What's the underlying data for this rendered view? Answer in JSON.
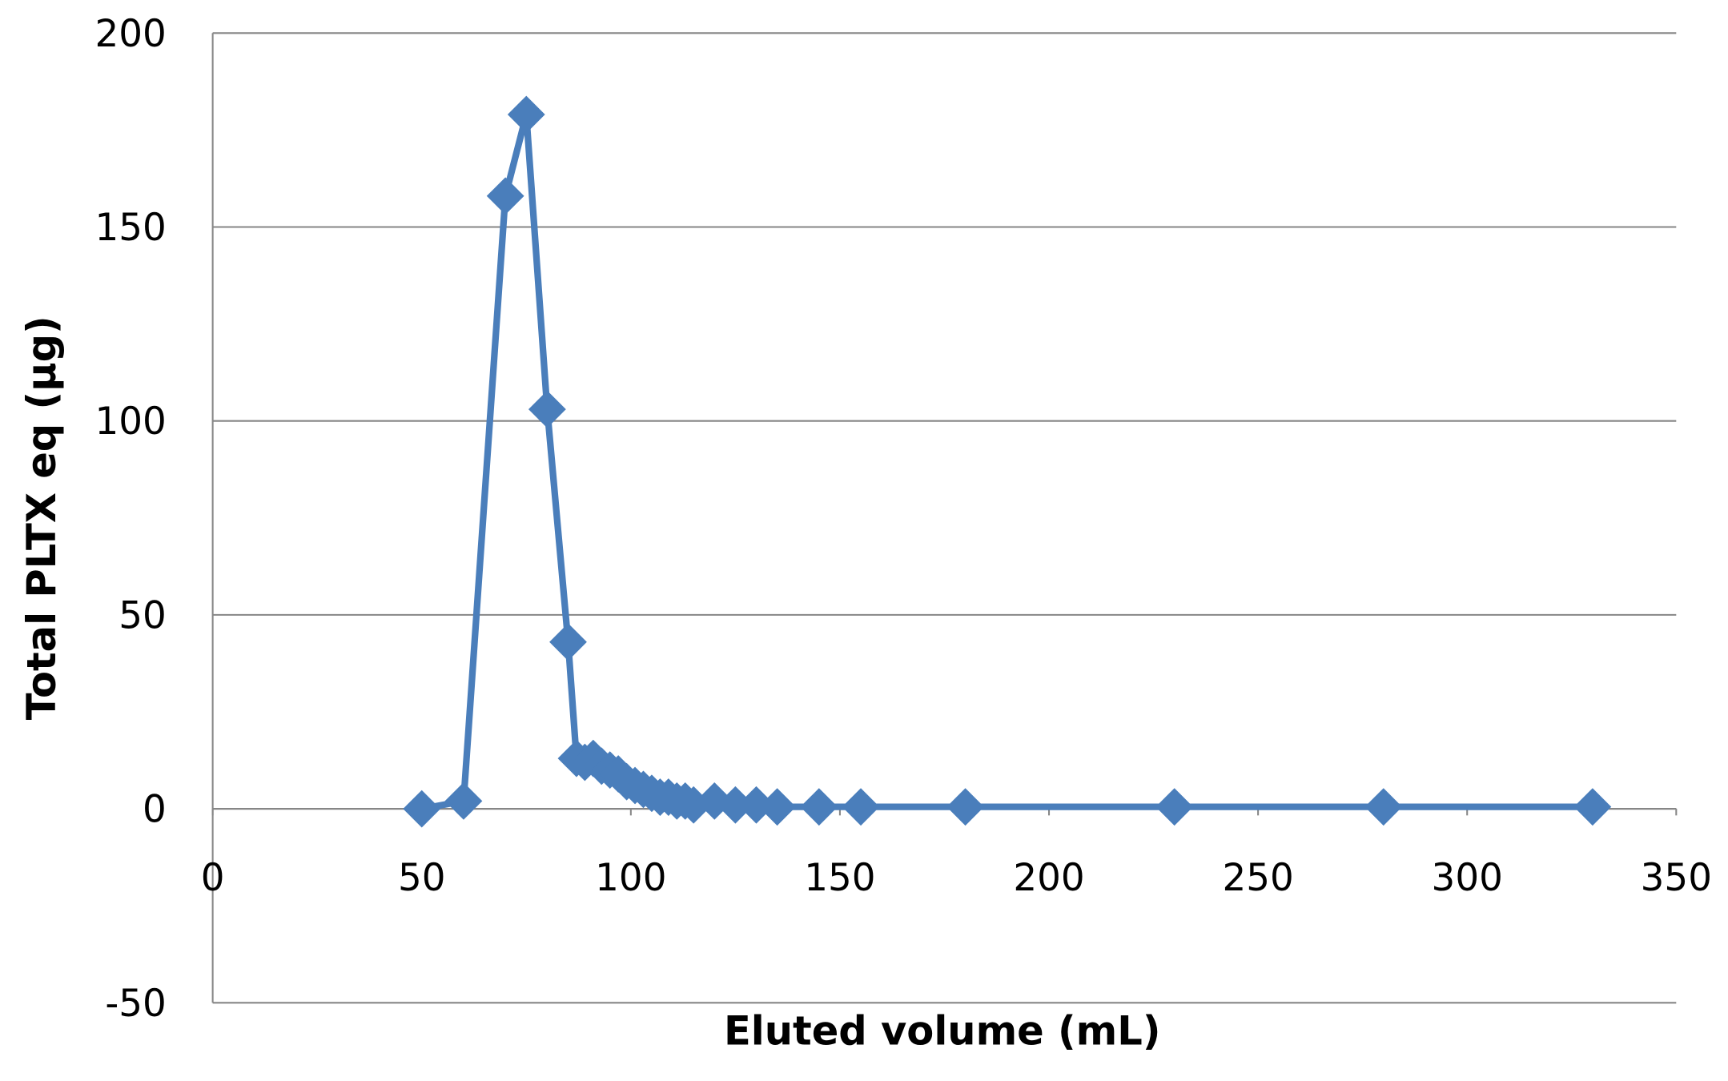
{
  "chart_data": {
    "type": "line",
    "x_label": "Eluted volume (mL)",
    "y_label": "Total PLTX eq (µg)",
    "x": [
      50,
      60,
      70,
      75,
      80,
      85,
      87,
      89,
      91,
      93,
      95,
      97,
      99,
      101,
      103,
      105,
      107,
      109,
      111,
      113,
      115,
      120,
      125,
      130,
      135,
      145,
      155,
      180,
      230,
      280,
      330
    ],
    "values": [
      0,
      2,
      158,
      179,
      103,
      43,
      13,
      12,
      13,
      11,
      10,
      9,
      7,
      6,
      5,
      4,
      3,
      3,
      2,
      2,
      1,
      2,
      1,
      1,
      0.5,
      0.5,
      0.5,
      0.5,
      0.5,
      0.5,
      0.5
    ],
    "color": "#4a7ebb",
    "marker": "diamond",
    "xlim": [
      0,
      350
    ],
    "xticks": [
      0,
      50,
      100,
      150,
      200,
      250,
      300,
      350
    ],
    "ylim": [
      -50,
      200
    ],
    "yticks": [
      -50,
      0,
      50,
      100,
      150,
      200
    ],
    "grid": true
  }
}
